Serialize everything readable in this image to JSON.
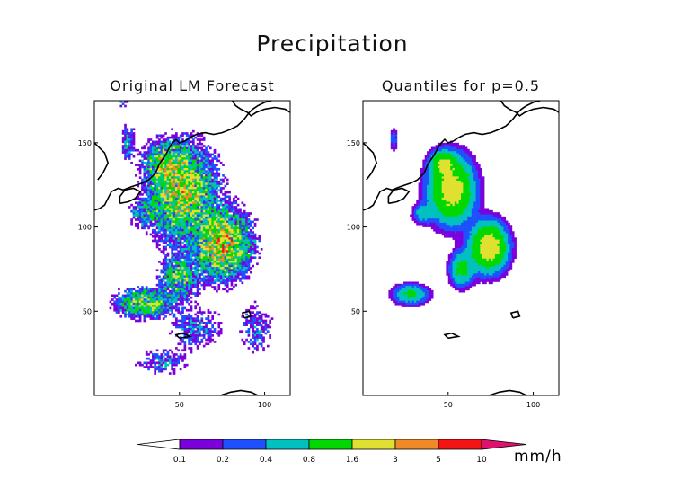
{
  "figure": {
    "title": "Precipitation"
  },
  "colors": {
    "bins": [
      "#ffffff",
      "#7a00dc",
      "#1e50ff",
      "#00c0c0",
      "#00d800",
      "#e0e030",
      "#f08a28",
      "#f41414",
      "#e0106e"
    ],
    "coast": "#000000"
  },
  "chart_data": [
    {
      "type": "heatmap",
      "title": "Original LM Forecast",
      "x_ticks": [
        "50",
        "100"
      ],
      "y_ticks": [
        "150",
        "100",
        "50"
      ],
      "xlim": [
        0,
        115
      ],
      "ylim": [
        0,
        175
      ],
      "seed": 7,
      "smooth": false,
      "blobs": [
        {
          "x": 52,
          "y": 120,
          "a": 3.0,
          "sx": 14,
          "sy": 20
        },
        {
          "x": 75,
          "y": 90,
          "a": 4.0,
          "sx": 12,
          "sy": 14
        },
        {
          "x": 42,
          "y": 138,
          "a": 2.2,
          "sx": 9,
          "sy": 9
        },
        {
          "x": 30,
          "y": 55,
          "a": 2.2,
          "sx": 12,
          "sy": 6
        },
        {
          "x": 50,
          "y": 70,
          "a": 1.6,
          "sx": 8,
          "sy": 10
        },
        {
          "x": 30,
          "y": 108,
          "a": 1.0,
          "sx": 6,
          "sy": 6
        },
        {
          "x": 20,
          "y": 150,
          "a": 0.7,
          "sx": 3,
          "sy": 8
        },
        {
          "x": 17,
          "y": 175,
          "a": 0.5,
          "sx": 2,
          "sy": 3
        },
        {
          "x": 60,
          "y": 40,
          "a": 0.4,
          "sx": 12,
          "sy": 10
        },
        {
          "x": 95,
          "y": 40,
          "a": 0.35,
          "sx": 8,
          "sy": 12
        },
        {
          "x": 40,
          "y": 20,
          "a": 0.4,
          "sx": 12,
          "sy": 6
        }
      ]
    },
    {
      "type": "heatmap",
      "title": "Quantiles for p=0.5",
      "x_ticks": [
        "50",
        "100"
      ],
      "y_ticks": [
        "150",
        "100",
        "50"
      ],
      "xlim": [
        0,
        115
      ],
      "ylim": [
        0,
        175
      ],
      "seed": 11,
      "smooth": true,
      "blobs": [
        {
          "x": 52,
          "y": 122,
          "a": 2.2,
          "sx": 11,
          "sy": 16
        },
        {
          "x": 74,
          "y": 88,
          "a": 2.4,
          "sx": 9,
          "sy": 12
        },
        {
          "x": 47,
          "y": 138,
          "a": 1.4,
          "sx": 6,
          "sy": 6
        },
        {
          "x": 28,
          "y": 60,
          "a": 0.9,
          "sx": 9,
          "sy": 5
        },
        {
          "x": 58,
          "y": 75,
          "a": 1.0,
          "sx": 6,
          "sy": 9
        },
        {
          "x": 35,
          "y": 108,
          "a": 0.6,
          "sx": 5,
          "sy": 5
        },
        {
          "x": 18,
          "y": 152,
          "a": 0.35,
          "sx": 2,
          "sy": 6
        }
      ]
    }
  ],
  "colorbar": {
    "tick_labels": [
      "0.1",
      "0.2",
      "0.4",
      "0.8",
      "1.6",
      "3",
      "5",
      "10"
    ],
    "thresholds": [
      0.1,
      0.2,
      0.4,
      0.8,
      1.6,
      3,
      5,
      10
    ],
    "unit": "mm/h"
  }
}
